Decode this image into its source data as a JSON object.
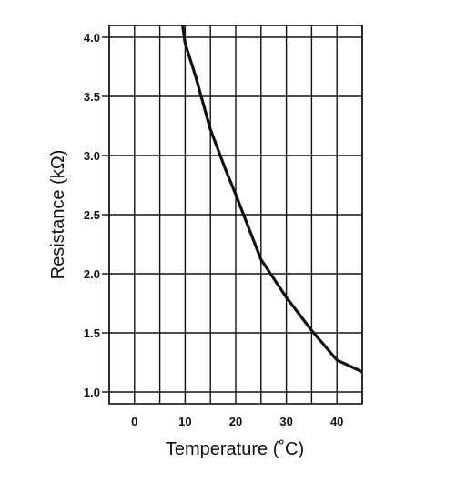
{
  "chart_data": {
    "type": "line",
    "title": "",
    "xlabel": "Temperature (˚C)",
    "ylabel": "Resistance (kΩ)",
    "xlim": [
      -5,
      45
    ],
    "ylim": [
      0.9,
      4.1
    ],
    "x_ticks": [
      0,
      10,
      20,
      30,
      40
    ],
    "x_tick_labels": [
      "0",
      "10",
      "20",
      "30",
      "40"
    ],
    "y_ticks": [
      1.0,
      1.5,
      2.0,
      2.5,
      3.0,
      3.5,
      4.0
    ],
    "y_tick_labels": [
      "1.0",
      "1.5",
      "2.0",
      "2.5",
      "3.0",
      "3.5",
      "4.0"
    ],
    "grid": true,
    "series": [
      {
        "x": [
          9.5,
          10,
          12,
          15,
          18,
          20,
          22,
          25,
          30,
          35,
          40,
          45
        ],
        "y": [
          4.1,
          3.95,
          3.68,
          3.22,
          2.88,
          2.67,
          2.45,
          2.12,
          1.8,
          1.52,
          1.27,
          1.17
        ]
      }
    ],
    "colors": {
      "line": "#111111",
      "grid": "#111111",
      "background": "#ffffff"
    }
  }
}
